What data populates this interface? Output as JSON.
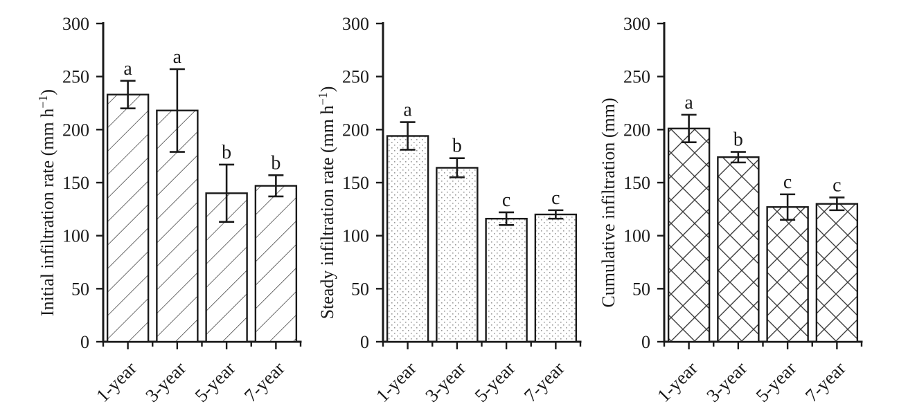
{
  "colors": {
    "background": "#ffffff",
    "ink": "#1a1a1a",
    "hatch_line": "#3c3c3c",
    "dot_fill": "#9a9a9a"
  },
  "chart_data": [
    {
      "type": "bar",
      "title": "",
      "ylabel": "Initial infiltration rate (mm h⁻¹)",
      "xlabel": "",
      "categories": [
        "1-year",
        "3-year",
        "5-year",
        "7-year"
      ],
      "values": [
        233,
        218,
        140,
        147
      ],
      "errors": [
        13,
        39,
        27,
        10
      ],
      "sig_letters": [
        "a",
        "a",
        "b",
        "b"
      ],
      "bar_fill_pattern": "diagonal-hatch",
      "ylim": [
        0,
        300
      ],
      "yticks": [
        0,
        50,
        100,
        150,
        200,
        250,
        300
      ],
      "xtick_rotation": 45,
      "grid": false,
      "legend": false
    },
    {
      "type": "bar",
      "title": "",
      "ylabel": "Steady infiltration rate (mm h⁻¹)",
      "xlabel": "",
      "categories": [
        "1-year",
        "3-year",
        "5-year",
        "7-year"
      ],
      "values": [
        194,
        164,
        116,
        120
      ],
      "errors": [
        13,
        9,
        6,
        4
      ],
      "sig_letters": [
        "a",
        "b",
        "c",
        "c"
      ],
      "bar_fill_pattern": "dots",
      "ylim": [
        0,
        300
      ],
      "yticks": [
        0,
        50,
        100,
        150,
        200,
        250,
        300
      ],
      "xtick_rotation": 45,
      "grid": false,
      "legend": false
    },
    {
      "type": "bar",
      "title": "",
      "ylabel": "Cumulative infiltration (mm)",
      "xlabel": "",
      "categories": [
        "1-year",
        "3-year",
        "5-year",
        "7-year"
      ],
      "values": [
        201,
        174,
        127,
        130
      ],
      "errors": [
        13,
        5,
        12,
        6
      ],
      "sig_letters": [
        "a",
        "b",
        "c",
        "c"
      ],
      "bar_fill_pattern": "crosshatch",
      "ylim": [
        0,
        300
      ],
      "yticks": [
        0,
        50,
        100,
        150,
        200,
        250,
        300
      ],
      "xtick_rotation": 45,
      "grid": false,
      "legend": false
    }
  ]
}
